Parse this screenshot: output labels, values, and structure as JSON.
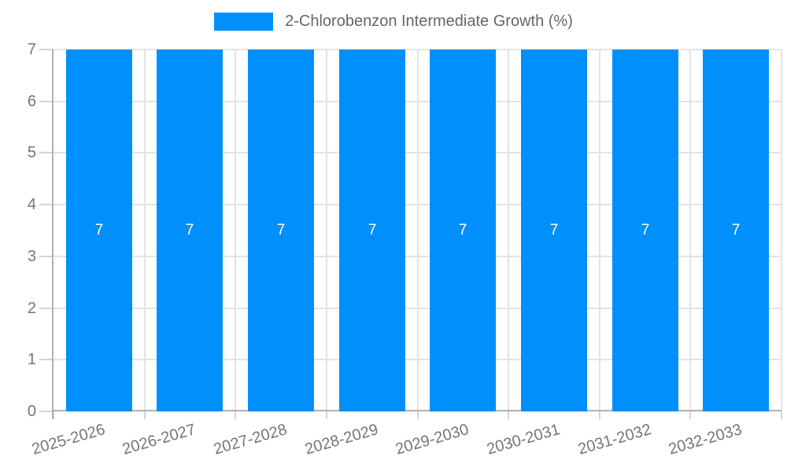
{
  "legend": {
    "label": "2-Chlorobenzon Intermediate Growth (%)",
    "color": "#008FFB"
  },
  "chart_data": {
    "type": "bar",
    "title": "2-Chlorobenzon Intermediate Growth (%)",
    "series_name": "2-Chlorobenzon Intermediate Growth (%)",
    "categories": [
      "2025-2026",
      "2026-2027",
      "2027-2028",
      "2028-2029",
      "2029-2030",
      "2030-2031",
      "2031-2032",
      "2032-2033"
    ],
    "values": [
      7,
      7,
      7,
      7,
      7,
      7,
      7,
      7
    ],
    "xlabel": "",
    "ylabel": "",
    "ylim": [
      0,
      7
    ],
    "yticks": [
      0,
      1,
      2,
      3,
      4,
      5,
      6,
      7
    ],
    "grid": true,
    "legend_position": "top",
    "colors": {
      "bar": "#008FFB",
      "value_label": "#ffffff",
      "axis_label": "#757575",
      "gridline": "#e3e3e3",
      "axis_line": "#b1b1b1",
      "background": "#ffffff"
    }
  }
}
